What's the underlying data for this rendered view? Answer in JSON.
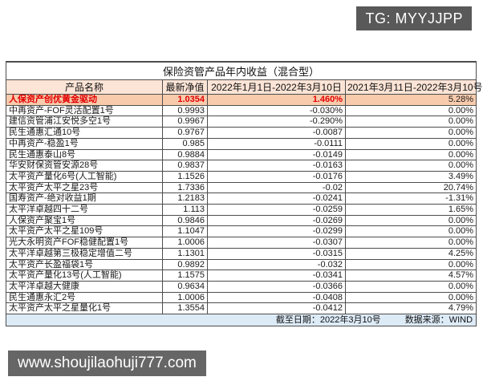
{
  "watermarks": {
    "tg_badge": "TG: MYYJJPP",
    "website": "www.shoujilaohuji777.com"
  },
  "colors": {
    "header_bg": "#fce4d6",
    "highlight_row_bg": "#f8cbad",
    "highlight_text": "#e10000",
    "footer_bg": "#ddebf7",
    "watermark_bg": "#595959"
  },
  "chart_data": {
    "type": "table",
    "title": "保险资管产品年内收益（混合型）",
    "columns": [
      "产品名称",
      "最新净值",
      "2022年1月1日-2022年3月10日",
      "2021年3月11日-2022年3月10号"
    ],
    "highlight_row": 0,
    "rows": [
      [
        "人保资产创优黄金驱动",
        "1.0354",
        "1.460%",
        "5.28%"
      ],
      [
        "中再资产-FOF灵活配置1号",
        "0.9993",
        "-0.030%",
        "0.00%"
      ],
      [
        "建信资管浦江安悦多空1号",
        "0.9967",
        "-0.290%",
        "0.00%"
      ],
      [
        "民生通惠汇通10号",
        "0.9767",
        "-0.0087",
        "0.00%"
      ],
      [
        "中再资产-稳盈1号",
        "0.985",
        "-0.0111",
        "0.00%"
      ],
      [
        "民生通惠泰山8号",
        "0.9884",
        "-0.0149",
        "0.00%"
      ],
      [
        "华安财保资管安源28号",
        "0.9837",
        "-0.0163",
        "0.00%"
      ],
      [
        "太平资产量化6号(人工智能)",
        "1.1526",
        "-0.0176",
        "3.49%"
      ],
      [
        "太平资产太平之星23号",
        "1.7336",
        "-0.02",
        "20.74%"
      ],
      [
        "国寿资产-绝对收益1期",
        "1.2183",
        "-0.0241",
        "-1.31%"
      ],
      [
        "太平洋卓越四十二号",
        "1.113",
        "-0.0259",
        "1.65%"
      ],
      [
        "人保资产聚宝1号",
        "0.9846",
        "-0.0269",
        "0.00%"
      ],
      [
        "太平资产太平之星109号",
        "1.1047",
        "-0.0299",
        "0.00%"
      ],
      [
        "光大永明资产FOF稳健配置1号",
        "1.0006",
        "-0.0307",
        "0.00%"
      ],
      [
        "太平洋卓越第三极稳定增值二号",
        "1.1301",
        "-0.0315",
        "4.25%"
      ],
      [
        "太平资产长盈福袋1号",
        "0.9892",
        "-0.032",
        "0.00%"
      ],
      [
        "太平资产量化13号(人工智能)",
        "1.1575",
        "-0.0341",
        "4.57%"
      ],
      [
        "太平洋卓越大健康",
        "0.9634",
        "-0.0366",
        "0.00%"
      ],
      [
        "民生通惠永汇2号",
        "1.0006",
        "-0.0408",
        "0.00%"
      ],
      [
        "太平资产太平之星量化1号",
        "1.3554",
        "-0.0412",
        "4.79%"
      ]
    ],
    "footer_note": "截至日期：2022年3月10号",
    "source": "数据来源：WIND"
  }
}
